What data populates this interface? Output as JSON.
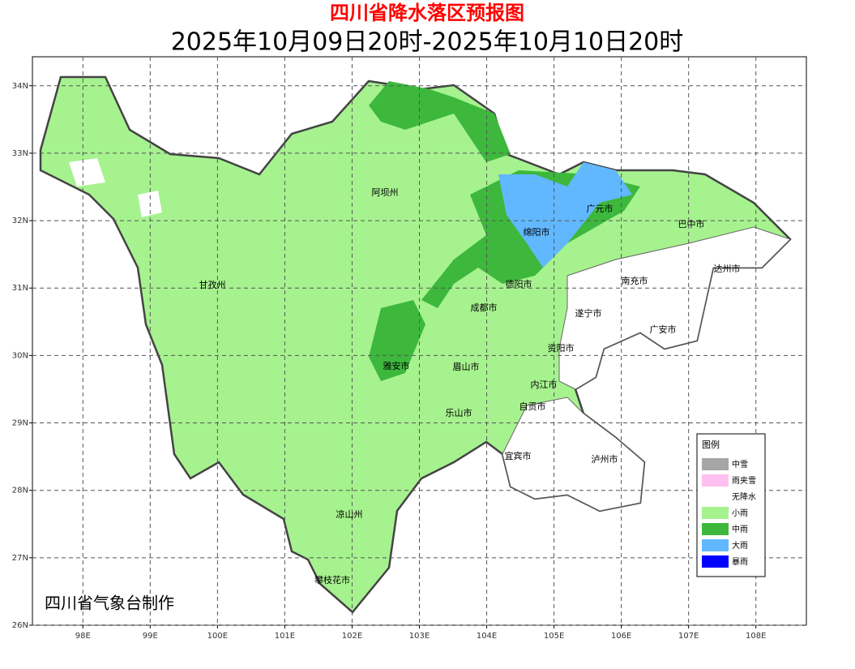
{
  "header": {
    "title": "四川省降水落区预报图",
    "subtitle": "2025年10月09日20时-2025年10月10日20时"
  },
  "map": {
    "xlim": [
      97.25,
      108.75
    ],
    "ylim": [
      26,
      34.43
    ],
    "xticks": [
      {
        "value": 98,
        "label": "98E"
      },
      {
        "value": 99,
        "label": "99E"
      },
      {
        "value": 100,
        "label": "100E"
      },
      {
        "value": 101,
        "label": "101E"
      },
      {
        "value": 102,
        "label": "102E"
      },
      {
        "value": 103,
        "label": "103E"
      },
      {
        "value": 104,
        "label": "104E"
      },
      {
        "value": 105,
        "label": "105E"
      },
      {
        "value": 106,
        "label": "106E"
      },
      {
        "value": 107,
        "label": "107E"
      },
      {
        "value": 108,
        "label": "108E"
      }
    ],
    "yticks": [
      {
        "value": 26,
        "label": "26N"
      },
      {
        "value": 27,
        "label": "27N"
      },
      {
        "value": 28,
        "label": "28N"
      },
      {
        "value": 29,
        "label": "29N"
      },
      {
        "value": 30,
        "label": "30N"
      },
      {
        "value": 31,
        "label": "31N"
      },
      {
        "value": 32,
        "label": "32N"
      },
      {
        "value": 33,
        "label": "33N"
      },
      {
        "value": 34,
        "label": "34N"
      }
    ],
    "grid": true,
    "cities": [
      "阿坝州",
      "甘孜州",
      "广元市",
      "巴中市",
      "绵阳市",
      "达州市",
      "南充市",
      "德阳市",
      "成都市",
      "遂宁市",
      "广安市",
      "资阳市",
      "雅安市",
      "眉山市",
      "内江市",
      "自贡市",
      "乐山市",
      "宜宾市",
      "泸州市",
      "凉山州",
      "攀枝花市"
    ],
    "credit": "四川省气象台制作"
  },
  "legend": {
    "title": "图例",
    "items": [
      {
        "name": "中雪",
        "color": "#a6a6a6"
      },
      {
        "name": "雨夹雪",
        "color": "#ffc0f0"
      },
      {
        "name": "无降水",
        "color": "#ffffff"
      },
      {
        "name": "小雨",
        "color": "#a6f28f"
      },
      {
        "name": "中雨",
        "color": "#3db83d"
      },
      {
        "name": "大雨",
        "color": "#61b8ff"
      },
      {
        "name": "暴雨",
        "color": "#0000ff"
      }
    ]
  }
}
